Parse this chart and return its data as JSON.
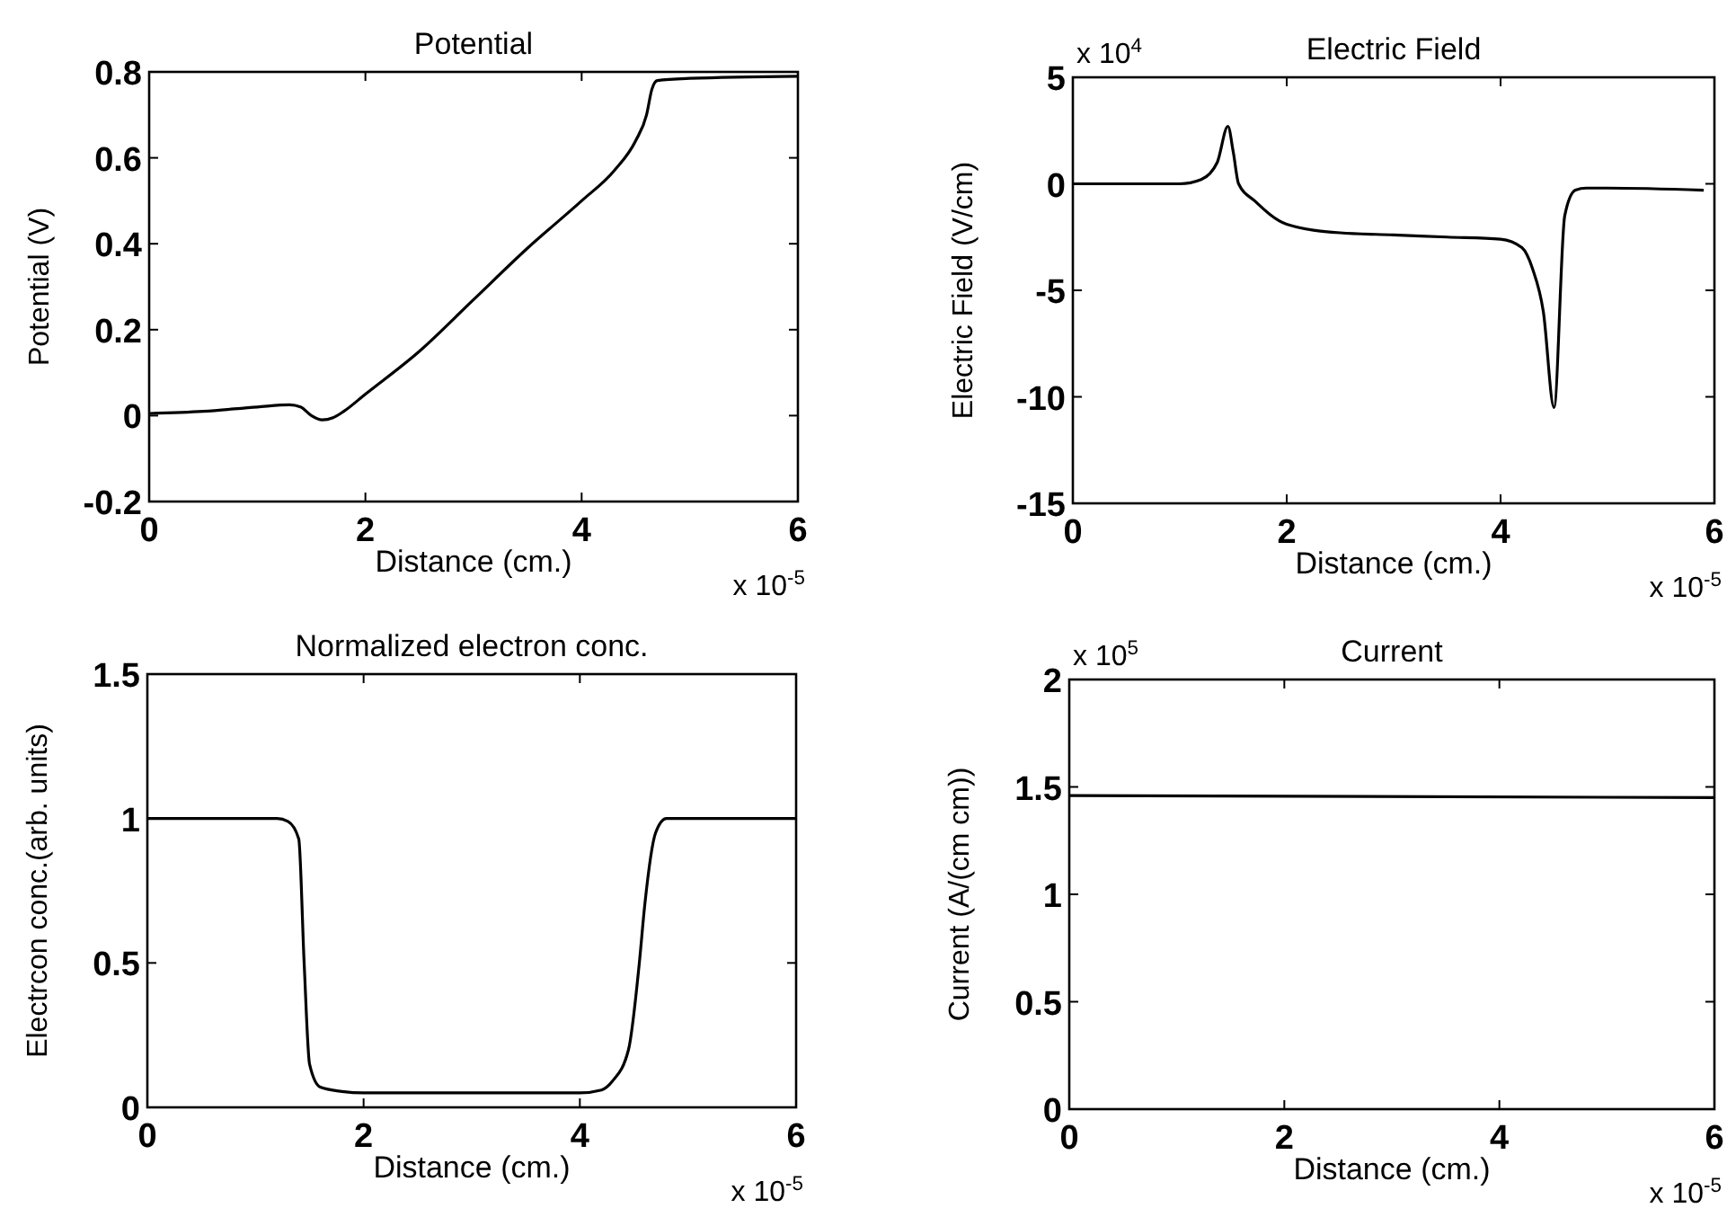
{
  "chart_data": [
    {
      "type": "line",
      "title": "Potential",
      "xlabel": "Distance (cm.)",
      "ylabel": "Potential (V)",
      "annotations": [
        "x 10$^{-5}$"
      ],
      "xlim": [
        0,
        6
      ],
      "xticks": [
        0,
        2,
        4,
        6
      ],
      "ylim": [
        -0.2,
        0.8
      ],
      "yticks": [
        -0.2,
        0,
        0.2,
        0.4,
        0.6,
        0.8
      ],
      "series": [
        {
          "color": "#000000",
          "x": [
            0,
            0.5,
            1,
            1.3,
            1.4,
            1.5,
            1.6,
            1.7,
            1.8,
            2,
            2.5,
            3,
            3.5,
            4,
            4.3,
            4.5,
            4.6,
            4.65,
            4.7,
            5,
            6
          ],
          "values": [
            0.005,
            0.01,
            0.02,
            0.025,
            0.02,
            0,
            -0.01,
            -0.005,
            0.01,
            0.05,
            0.15,
            0.27,
            0.39,
            0.5,
            0.57,
            0.64,
            0.7,
            0.76,
            0.78,
            0.785,
            0.79
          ]
        }
      ]
    },
    {
      "type": "line",
      "title": "Electric Field",
      "xlabel": "Distance (cm.)",
      "ylabel": "Electric Field (V/cm)",
      "annotations": [
        "x 10$^{-5}$",
        "x 10$^{4}$"
      ],
      "xlim": [
        0,
        6
      ],
      "xticks": [
        0,
        2,
        4,
        6
      ],
      "ylim": [
        -15,
        5
      ],
      "yticks": [
        -15,
        -10,
        -5,
        0,
        5
      ],
      "series": [
        {
          "color": "#000000",
          "x": [
            0,
            1,
            1.2,
            1.35,
            1.45,
            1.5,
            1.55,
            1.7,
            2,
            2.5,
            3,
            3.5,
            4,
            4.2,
            4.3,
            4.4,
            4.5,
            4.6,
            4.7,
            4.8,
            5,
            5.9
          ],
          "values": [
            0,
            0,
            0.2,
            1,
            2.7,
            1.5,
            0,
            -0.8,
            -1.9,
            -2.3,
            -2.4,
            -2.5,
            -2.6,
            -3,
            -4,
            -6,
            -10.5,
            -1.5,
            -0.3,
            -0.2,
            -0.2,
            -0.3
          ]
        }
      ]
    },
    {
      "type": "line",
      "title": "Normalized electron conc.",
      "xlabel": "Distance (cm.)",
      "ylabel": "Electrcon conc.(arb. units)",
      "annotations": [
        "x 10$^{-5}$"
      ],
      "xlim": [
        0,
        6
      ],
      "xticks": [
        0,
        2,
        4,
        6
      ],
      "ylim": [
        0,
        1.5
      ],
      "yticks": [
        0,
        0.5,
        1,
        1.5
      ],
      "series": [
        {
          "color": "#000000",
          "x": [
            0,
            1.2,
            1.3,
            1.4,
            1.45,
            1.5,
            1.6,
            1.8,
            2,
            3,
            4,
            4.2,
            4.3,
            4.45,
            4.55,
            4.6,
            4.7,
            4.8,
            6
          ],
          "values": [
            1,
            1,
            0.99,
            0.93,
            0.5,
            0.15,
            0.07,
            0.055,
            0.05,
            0.05,
            0.05,
            0.06,
            0.09,
            0.2,
            0.5,
            0.7,
            0.95,
            1,
            1
          ]
        }
      ]
    },
    {
      "type": "line",
      "title": "Current",
      "xlabel": "Distance (cm.)",
      "ylabel": "Current (A/(cm cm))",
      "annotations": [
        "x 10$^{-5}$",
        "x 10$^{5}$"
      ],
      "xlim": [
        0,
        6
      ],
      "xticks": [
        0,
        2,
        4,
        6
      ],
      "ylim": [
        0,
        2
      ],
      "yticks": [
        0,
        0.5,
        1,
        1.5,
        2
      ],
      "series": [
        {
          "color": "#000000",
          "x": [
            0,
            6
          ],
          "values": [
            1.46,
            1.45
          ]
        }
      ]
    }
  ]
}
